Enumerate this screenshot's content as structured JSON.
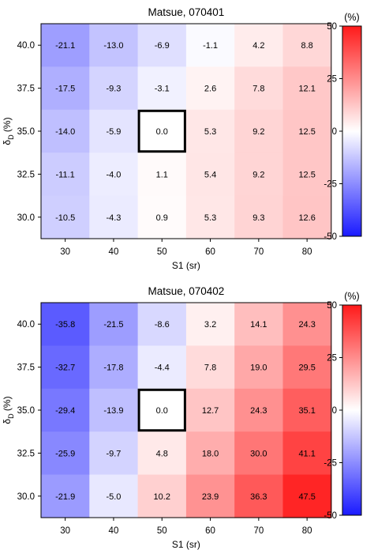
{
  "chart_data": [
    {
      "type": "heatmap",
      "title": "Matsue, 070401",
      "xlabel": "S1 (sr)",
      "ylabel_main": "δ",
      "ylabel_sub": "D",
      "ylabel_unit": "(%)",
      "x": [
        "30",
        "40",
        "50",
        "60",
        "70",
        "80"
      ],
      "y": [
        "40.0",
        "37.5",
        "35.0",
        "32.5",
        "30.0"
      ],
      "values": [
        [
          "-21.1",
          "-13.0",
          "-6.9",
          "-1.1",
          "4.2",
          "8.8"
        ],
        [
          "-17.5",
          "-9.3",
          "-3.1",
          "2.6",
          "7.8",
          "12.1"
        ],
        [
          "-14.0",
          "-5.9",
          "0.0",
          "5.3",
          "9.2",
          "12.5"
        ],
        [
          "-11.1",
          "-4.0",
          "1.1",
          "5.4",
          "9.2",
          "12.5"
        ],
        [
          "-10.5",
          "-4.3",
          "0.9",
          "5.3",
          "9.3",
          "12.6"
        ]
      ],
      "highlight_cell": {
        "row": 2,
        "col": 2
      },
      "colorbar": {
        "unit": "(%)",
        "range": [
          -50,
          50
        ],
        "ticks": [
          "50",
          "25",
          "0",
          "-25",
          "-50"
        ],
        "low_color": "#1a1aff",
        "mid_color": "#ffffff",
        "high_color": "#ff1a1a"
      }
    },
    {
      "type": "heatmap",
      "title": "Matsue, 070402",
      "xlabel": "S1 (sr)",
      "ylabel_main": "δ",
      "ylabel_sub": "D",
      "ylabel_unit": "(%)",
      "x": [
        "30",
        "40",
        "50",
        "60",
        "70",
        "80"
      ],
      "y": [
        "40.0",
        "37.5",
        "35.0",
        "32.5",
        "30.0"
      ],
      "values": [
        [
          "-35.8",
          "-21.5",
          "-8.6",
          "3.2",
          "14.1",
          "24.3"
        ],
        [
          "-32.7",
          "-17.8",
          "-4.4",
          "7.8",
          "19.0",
          "29.5"
        ],
        [
          "-29.4",
          "-13.9",
          "0.0",
          "12.7",
          "24.3",
          "35.1"
        ],
        [
          "-25.9",
          "-9.7",
          "4.8",
          "18.0",
          "30.0",
          "41.1"
        ],
        [
          "-21.9",
          "-5.0",
          "10.2",
          "23.9",
          "36.3",
          "47.5"
        ]
      ],
      "highlight_cell": {
        "row": 2,
        "col": 2
      },
      "colorbar": {
        "unit": "(%)",
        "range": [
          -50,
          50
        ],
        "ticks": [
          "50",
          "25",
          "0",
          "-25",
          "-50"
        ],
        "low_color": "#1a1aff",
        "mid_color": "#ffffff",
        "high_color": "#ff1a1a"
      }
    }
  ]
}
